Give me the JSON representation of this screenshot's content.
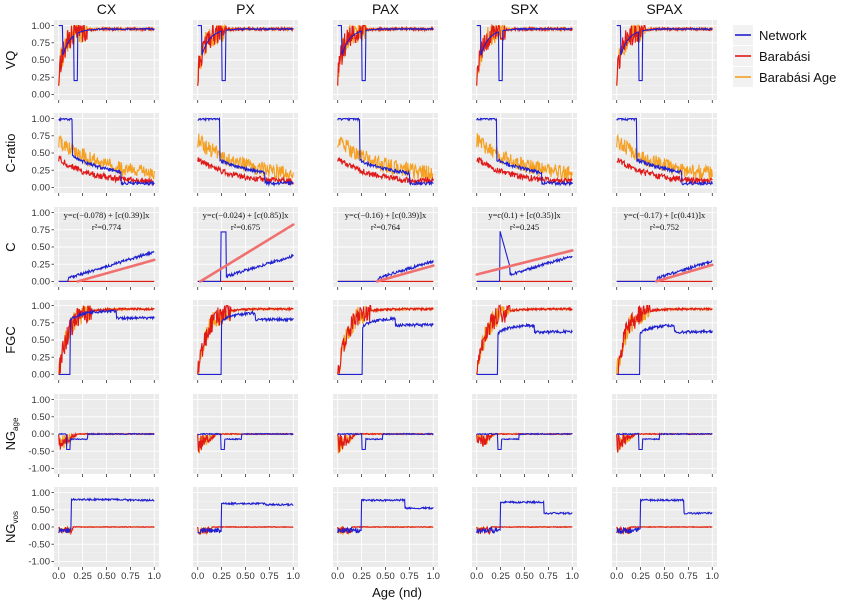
{
  "chart_data": {
    "type": "line",
    "columns": [
      "CX",
      "PX",
      "PAX",
      "SPX",
      "SPAX"
    ],
    "rows": [
      {
        "key": "vq",
        "label": "VQ",
        "sub": "",
        "ylim": [
          0,
          1
        ],
        "yticks": [
          "0.00",
          "0.25",
          "0.50",
          "0.75",
          "1.00"
        ],
        "ytick_values": [
          0,
          0.25,
          0.5,
          0.75,
          1.0
        ]
      },
      {
        "key": "cratio",
        "label": "C-ratio",
        "sub": "",
        "ylim": [
          0,
          1
        ],
        "yticks": [
          "0.00",
          "0.25",
          "0.50",
          "0.75",
          "1.00"
        ],
        "ytick_values": [
          0,
          0.25,
          0.5,
          0.75,
          1.0
        ]
      },
      {
        "key": "c",
        "label": "C",
        "sub": "",
        "ylim": [
          0,
          1
        ],
        "yticks": [
          "0.00",
          "0.25",
          "0.50",
          "0.75",
          "1.00"
        ],
        "ytick_values": [
          0,
          0.25,
          0.5,
          0.75,
          1.0
        ]
      },
      {
        "key": "fgc",
        "label": "FGC",
        "sub": "",
        "ylim": [
          0,
          1
        ],
        "yticks": [
          "0.00",
          "0.25",
          "0.50",
          "0.75",
          "1.00"
        ],
        "ytick_values": [
          0,
          0.25,
          0.5,
          0.75,
          1.0
        ]
      },
      {
        "key": "ngage",
        "label": "NG",
        "sub": "age",
        "ylim": [
          -1,
          1
        ],
        "yticks": [
          "-1.00",
          "-0.50",
          "0.00",
          "0.50",
          "1.00"
        ],
        "ytick_values": [
          -1,
          -0.5,
          0,
          0.5,
          1.0
        ]
      },
      {
        "key": "ngvos",
        "label": "NG",
        "sub": "vos",
        "ylim": [
          -1,
          1
        ],
        "yticks": [
          "-1.00",
          "-0.50",
          "0.00",
          "0.50",
          "1.00"
        ],
        "ytick_values": [
          -1,
          -0.5,
          0,
          0.5,
          1.0
        ]
      }
    ],
    "xlim": [
      0,
      1
    ],
    "xticks": [
      "0.0",
      "0.25",
      "0.50",
      "0.75",
      "1.0"
    ],
    "xtick_values": [
      0,
      0.25,
      0.5,
      0.75,
      1.0
    ],
    "xlabel": "Age (nd)",
    "grid": true,
    "legend_position": "top-right",
    "series": [
      {
        "name": "Network",
        "color": "#2020d0"
      },
      {
        "name": "Barabási",
        "color": "#e01818"
      },
      {
        "name": "Barabási Age",
        "color": "#f5a020"
      }
    ],
    "fit_color": "#f07070",
    "annotations": [
      {
        "equation": "y=c(−0.078) + [c(0.39)]x",
        "r2": "r²=0.774",
        "intercept": -0.078,
        "slope": 0.39
      },
      {
        "equation": "y=c(−0.024) + [c(0.85)]x",
        "r2": "r²=0.675",
        "intercept": -0.024,
        "slope": 0.85
      },
      {
        "equation": "y=c(−0.16) + [c(0.39)]x",
        "r2": "r²=0.764",
        "intercept": -0.16,
        "slope": 0.39
      },
      {
        "equation": "y=c(0.1) + [c(0.35)]x",
        "r2": "r²=0.245",
        "intercept": 0.1,
        "slope": 0.35
      },
      {
        "equation": "y=c(−0.17) + [c(0.41)]x",
        "r2": "r²=0.752",
        "intercept": -0.17,
        "slope": 0.41
      }
    ]
  }
}
